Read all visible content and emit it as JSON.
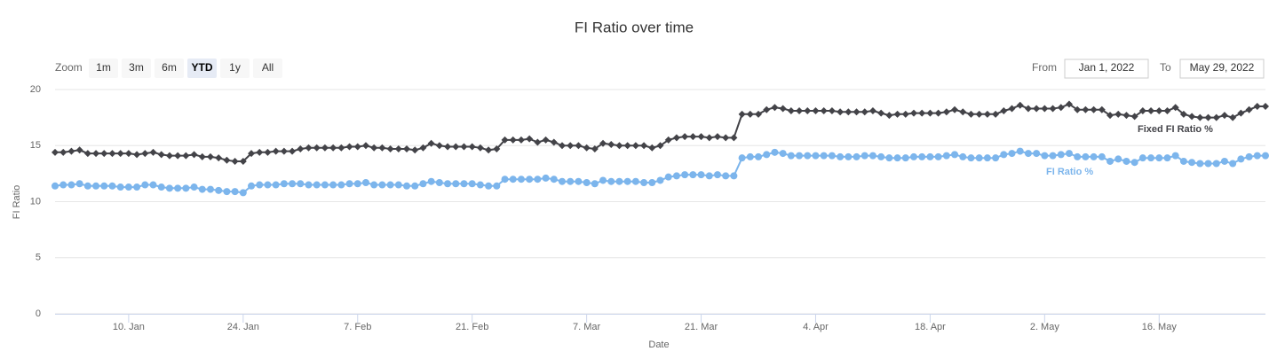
{
  "chart_data": {
    "type": "line",
    "title": "FI Ratio over time",
    "x_label": "Date",
    "y_label": "FI Ratio",
    "range_selector": {
      "zoom_label": "Zoom",
      "buttons": [
        "1m",
        "3m",
        "6m",
        "YTD",
        "1y",
        "All"
      ],
      "selected": 3,
      "from_label": "From",
      "from": "Jan 1, 2022",
      "to_label": "To",
      "to": "May 29, 2022"
    },
    "xlim": [
      "2022-01-01",
      "2022-05-29"
    ],
    "xticks": [
      {
        "value": "2022-01-10",
        "label": "10. Jan"
      },
      {
        "value": "2022-01-24",
        "label": "24. Jan"
      },
      {
        "value": "2022-02-07",
        "label": "7. Feb"
      },
      {
        "value": "2022-02-21",
        "label": "21. Feb"
      },
      {
        "value": "2022-03-07",
        "label": "7. Mar"
      },
      {
        "value": "2022-03-21",
        "label": "21. Mar"
      },
      {
        "value": "2022-04-04",
        "label": "4. Apr"
      },
      {
        "value": "2022-04-18",
        "label": "18. Apr"
      },
      {
        "value": "2022-05-02",
        "label": "2. May"
      },
      {
        "value": "2022-05-16",
        "label": "16. May"
      }
    ],
    "ylim": [
      0,
      20
    ],
    "yticks": [
      0,
      5,
      10,
      15,
      20
    ],
    "grid": true,
    "x": [
      "2022-01-01",
      "2022-01-02",
      "2022-01-03",
      "2022-01-04",
      "2022-01-05",
      "2022-01-06",
      "2022-01-07",
      "2022-01-08",
      "2022-01-09",
      "2022-01-10",
      "2022-01-11",
      "2022-01-12",
      "2022-01-13",
      "2022-01-14",
      "2022-01-15",
      "2022-01-16",
      "2022-01-17",
      "2022-01-18",
      "2022-01-19",
      "2022-01-20",
      "2022-01-21",
      "2022-01-22",
      "2022-01-23",
      "2022-01-24",
      "2022-01-25",
      "2022-01-26",
      "2022-01-27",
      "2022-01-28",
      "2022-01-29",
      "2022-01-30",
      "2022-01-31",
      "2022-02-01",
      "2022-02-02",
      "2022-02-03",
      "2022-02-04",
      "2022-02-05",
      "2022-02-06",
      "2022-02-07",
      "2022-02-08",
      "2022-02-09",
      "2022-02-10",
      "2022-02-11",
      "2022-02-12",
      "2022-02-13",
      "2022-02-14",
      "2022-02-15",
      "2022-02-16",
      "2022-02-17",
      "2022-02-18",
      "2022-02-19",
      "2022-02-20",
      "2022-02-21",
      "2022-02-22",
      "2022-02-23",
      "2022-02-24",
      "2022-02-25",
      "2022-02-26",
      "2022-02-27",
      "2022-02-28",
      "2022-03-01",
      "2022-03-02",
      "2022-03-03",
      "2022-03-04",
      "2022-03-05",
      "2022-03-06",
      "2022-03-07",
      "2022-03-08",
      "2022-03-09",
      "2022-03-10",
      "2022-03-11",
      "2022-03-12",
      "2022-03-13",
      "2022-03-14",
      "2022-03-15",
      "2022-03-16",
      "2022-03-17",
      "2022-03-18",
      "2022-03-19",
      "2022-03-20",
      "2022-03-21",
      "2022-03-22",
      "2022-03-23",
      "2022-03-24",
      "2022-03-25",
      "2022-03-26",
      "2022-03-27",
      "2022-03-28",
      "2022-03-29",
      "2022-03-30",
      "2022-03-31",
      "2022-04-01",
      "2022-04-02",
      "2022-04-03",
      "2022-04-04",
      "2022-04-05",
      "2022-04-06",
      "2022-04-07",
      "2022-04-08",
      "2022-04-09",
      "2022-04-10",
      "2022-04-11",
      "2022-04-12",
      "2022-04-13",
      "2022-04-14",
      "2022-04-15",
      "2022-04-16",
      "2022-04-17",
      "2022-04-18",
      "2022-04-19",
      "2022-04-20",
      "2022-04-21",
      "2022-04-22",
      "2022-04-23",
      "2022-04-24",
      "2022-04-25",
      "2022-04-26",
      "2022-04-27",
      "2022-04-28",
      "2022-04-29",
      "2022-04-30",
      "2022-05-01",
      "2022-05-02",
      "2022-05-03",
      "2022-05-04",
      "2022-05-05",
      "2022-05-06",
      "2022-05-07",
      "2022-05-08",
      "2022-05-09",
      "2022-05-10",
      "2022-05-11",
      "2022-05-12",
      "2022-05-13",
      "2022-05-14",
      "2022-05-15",
      "2022-05-16",
      "2022-05-17",
      "2022-05-18",
      "2022-05-19",
      "2022-05-20",
      "2022-05-21",
      "2022-05-22",
      "2022-05-23",
      "2022-05-24",
      "2022-05-25",
      "2022-05-26",
      "2022-05-27",
      "2022-05-28",
      "2022-05-29"
    ],
    "series": [
      {
        "name": "Fixed FI Ratio %",
        "color": "#434348",
        "marker": "diamond",
        "values": [
          14.4,
          14.4,
          14.5,
          14.6,
          14.3,
          14.3,
          14.3,
          14.3,
          14.3,
          14.3,
          14.2,
          14.3,
          14.4,
          14.2,
          14.1,
          14.1,
          14.1,
          14.2,
          14.0,
          14.0,
          13.9,
          13.7,
          13.6,
          13.6,
          14.3,
          14.4,
          14.4,
          14.5,
          14.5,
          14.5,
          14.7,
          14.8,
          14.8,
          14.8,
          14.8,
          14.8,
          14.9,
          14.9,
          15.0,
          14.8,
          14.8,
          14.7,
          14.7,
          14.7,
          14.6,
          14.8,
          15.2,
          15.0,
          14.9,
          14.9,
          14.9,
          14.9,
          14.8,
          14.6,
          14.7,
          15.5,
          15.5,
          15.5,
          15.6,
          15.3,
          15.5,
          15.3,
          15.0,
          15.0,
          15.0,
          14.8,
          14.7,
          15.2,
          15.1,
          15.0,
          15.0,
          15.0,
          15.0,
          14.8,
          15.0,
          15.5,
          15.7,
          15.8,
          15.8,
          15.8,
          15.7,
          15.8,
          15.7,
          15.7,
          17.8,
          17.8,
          17.8,
          18.2,
          18.4,
          18.3,
          18.1,
          18.1,
          18.1,
          18.1,
          18.1,
          18.1,
          18.0,
          18.0,
          18.0,
          18.0,
          18.1,
          17.9,
          17.7,
          17.8,
          17.8,
          17.9,
          17.9,
          17.9,
          17.9,
          18.0,
          18.2,
          18.0,
          17.8,
          17.8,
          17.8,
          17.8,
          18.1,
          18.3,
          18.6,
          18.3,
          18.3,
          18.3,
          18.3,
          18.4,
          18.7,
          18.2,
          18.2,
          18.2,
          18.2,
          17.7,
          17.8,
          17.7,
          17.6,
          18.1,
          18.1,
          18.1,
          18.1,
          18.4,
          17.8,
          17.6,
          17.5,
          17.5,
          17.5,
          17.7,
          17.5,
          17.9,
          18.2,
          18.5,
          18.5
        ]
      },
      {
        "name": "FI Ratio %",
        "color": "#7cb5ec",
        "marker": "circle",
        "values": [
          11.4,
          11.5,
          11.5,
          11.6,
          11.4,
          11.4,
          11.4,
          11.4,
          11.3,
          11.3,
          11.3,
          11.5,
          11.5,
          11.3,
          11.2,
          11.2,
          11.2,
          11.3,
          11.1,
          11.1,
          11.0,
          10.9,
          10.9,
          10.8,
          11.4,
          11.5,
          11.5,
          11.5,
          11.6,
          11.6,
          11.6,
          11.5,
          11.5,
          11.5,
          11.5,
          11.5,
          11.6,
          11.6,
          11.7,
          11.5,
          11.5,
          11.5,
          11.5,
          11.4,
          11.4,
          11.6,
          11.8,
          11.7,
          11.6,
          11.6,
          11.6,
          11.6,
          11.5,
          11.4,
          11.4,
          12.0,
          12.0,
          12.0,
          12.0,
          12.0,
          12.1,
          12.0,
          11.8,
          11.8,
          11.8,
          11.7,
          11.6,
          11.9,
          11.8,
          11.8,
          11.8,
          11.8,
          11.7,
          11.7,
          11.9,
          12.2,
          12.3,
          12.4,
          12.4,
          12.4,
          12.3,
          12.4,
          12.3,
          12.3,
          13.9,
          14.0,
          14.0,
          14.2,
          14.4,
          14.3,
          14.1,
          14.1,
          14.1,
          14.1,
          14.1,
          14.1,
          14.0,
          14.0,
          14.0,
          14.1,
          14.1,
          14.0,
          13.9,
          13.9,
          13.9,
          14.0,
          14.0,
          14.0,
          14.0,
          14.1,
          14.2,
          14.0,
          13.9,
          13.9,
          13.9,
          13.9,
          14.2,
          14.3,
          14.5,
          14.3,
          14.3,
          14.1,
          14.1,
          14.2,
          14.3,
          14.0,
          14.0,
          14.0,
          14.0,
          13.6,
          13.8,
          13.6,
          13.5,
          13.9,
          13.9,
          13.9,
          13.9,
          14.1,
          13.6,
          13.5,
          13.4,
          13.4,
          13.4,
          13.6,
          13.4,
          13.8,
          14.0,
          14.1,
          14.1
        ]
      }
    ]
  }
}
